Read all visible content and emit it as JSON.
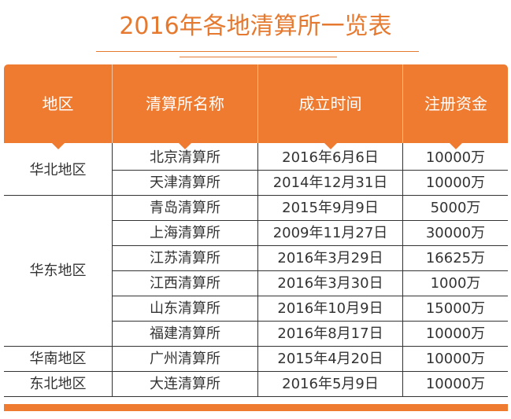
{
  "title": "2016年各地清算所一览表",
  "colors": {
    "accent": "#ee7b30",
    "text": "#333333"
  },
  "headers": [
    "地区",
    "清算所名称",
    "成立时间",
    "注册资金"
  ],
  "groups": [
    {
      "region": "华北地区",
      "rows": [
        {
          "name": "北京清算所",
          "date": "2016年6月6日",
          "capital": "10000万"
        },
        {
          "name": "天津清算所",
          "date": "2014年12月31日",
          "capital": "10000万"
        }
      ]
    },
    {
      "region": "华东地区",
      "rows": [
        {
          "name": "青岛清算所",
          "date": "2015年9月9日",
          "capital": "5000万"
        },
        {
          "name": "上海清算所",
          "date": "2009年11月27日",
          "capital": "30000万"
        },
        {
          "name": "江苏清算所",
          "date": "2016年3月29日",
          "capital": "16625万"
        },
        {
          "name": "江西清算所",
          "date": "2016年3月30日",
          "capital": "1000万"
        },
        {
          "name": "山东清算所",
          "date": "2016年10月9日",
          "capital": "15000万"
        },
        {
          "name": "福建清算所",
          "date": "2016年8月17日",
          "capital": "10000万"
        }
      ]
    },
    {
      "region": "华南地区",
      "rows": [
        {
          "name": "广州清算所",
          "date": "2015年4月20日",
          "capital": "10000万"
        }
      ]
    },
    {
      "region": "东北地区",
      "rows": [
        {
          "name": "大连清算所",
          "date": "2016年5月9日",
          "capital": "10000万"
        }
      ]
    }
  ]
}
